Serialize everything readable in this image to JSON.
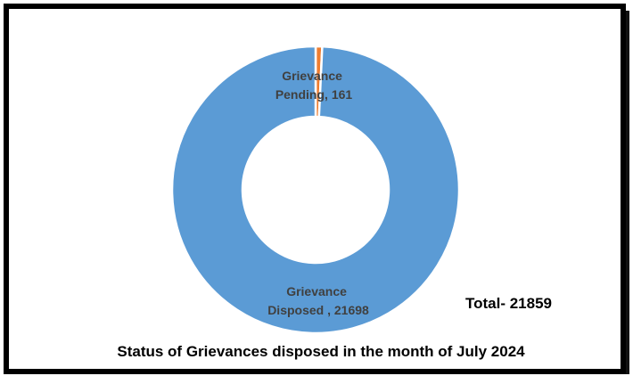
{
  "chart_data": {
    "type": "pie",
    "variant": "donut",
    "title": "Status of Grievances disposed in the month of July 2024",
    "total_label": "Total- 21859",
    "slices": [
      {
        "label_line1": "Grievance",
        "label_line2": "Pending, 161",
        "value": 161,
        "color": "#ED7D31"
      },
      {
        "label_line1": "Grievance",
        "label_line2": "Disposed , 21698",
        "value": 21698,
        "color": "#5B9BD5"
      }
    ]
  }
}
